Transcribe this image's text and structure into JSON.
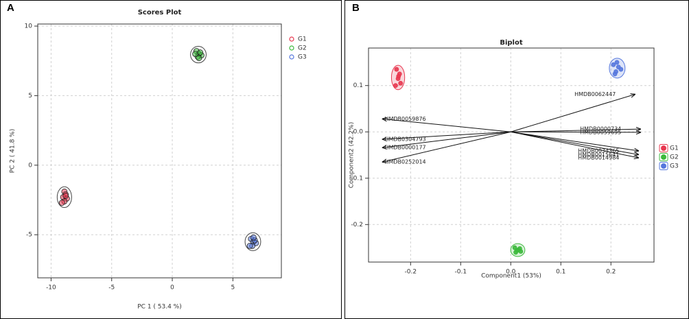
{
  "chart_data": [
    {
      "type": "scatter",
      "panel_label": "A",
      "title": "Scores Plot",
      "x_label": "PC 1 ( 53.4 %)",
      "y_label": "PC 2 ( 41.8 %)",
      "xlim": [
        -11.1,
        9
      ],
      "ylim": [
        -8.1,
        10.15
      ],
      "xticks": [
        -10,
        -5,
        0,
        5
      ],
      "yticks": [
        -5,
        0,
        5,
        10
      ],
      "grid": true,
      "legend": "right",
      "series": [
        {
          "name": "G1",
          "color": "#e8374f",
          "x": [
            -8.9,
            -8.8,
            -9.0,
            -8.7,
            -8.9,
            -8.8,
            -9.1
          ],
          "y": [
            -1.9,
            -2.1,
            -2.3,
            -2.4,
            -2.6,
            -2.2,
            -2.7
          ]
        },
        {
          "name": "G2",
          "color": "#3cb93c",
          "x": [
            2.0,
            2.2,
            2.4,
            2.1,
            2.3,
            1.9,
            2.2
          ],
          "y": [
            8.2,
            8.0,
            7.9,
            7.8,
            8.1,
            8.0,
            7.7
          ]
        },
        {
          "name": "G3",
          "color": "#5577dd",
          "x": [
            6.5,
            6.7,
            6.9,
            6.6,
            6.8,
            6.4,
            6.7
          ],
          "y": [
            -5.3,
            -5.5,
            -5.6,
            -5.8,
            -5.4,
            -5.8,
            -5.2
          ]
        }
      ]
    },
    {
      "type": "biplot",
      "panel_label": "B",
      "title": "Biplot",
      "x_label": "Component1 (53%)",
      "y_label": "Component2 (42.2%)",
      "xlim": [
        -0.284,
        0.286
      ],
      "ylim": [
        -0.281,
        0.181
      ],
      "xticks": [
        -0.2,
        -0.1,
        {
          "value": 0,
          "label": "0.0"
        },
        0.1,
        0.2
      ],
      "yticks": [
        -0.2,
        -0.1,
        {
          "value": 0,
          "label": "0.0"
        },
        0.1
      ],
      "grid": true,
      "legend": "right",
      "series": [
        {
          "name": "G1",
          "color": "#e8374f",
          "x": [
            -0.228,
            -0.222,
            -0.225,
            -0.22,
            -0.23,
            -0.224
          ],
          "y": [
            0.135,
            0.125,
            0.115,
            0.105,
            0.1,
            0.12
          ]
        },
        {
          "name": "G2",
          "color": "#3cb93c",
          "x": [
            0.008,
            0.015,
            0.02,
            0.01,
            0.018,
            0.012
          ],
          "y": [
            -0.25,
            -0.255,
            -0.258,
            -0.26,
            -0.252,
            -0.256
          ]
        },
        {
          "name": "G3",
          "color": "#5577dd",
          "x": [
            0.205,
            0.215,
            0.21,
            0.22,
            0.208,
            0.212
          ],
          "y": [
            0.145,
            0.14,
            0.13,
            0.135,
            0.125,
            0.15
          ]
        }
      ],
      "loadings": [
        {
          "name": "HMDB0062447",
          "x": 0.248,
          "y": 0.081
        },
        {
          "name": "HMDB0000734",
          "x": 0.259,
          "y": 0.006
        },
        {
          "name": "HMDB0059695",
          "x": 0.259,
          "y": -0.001
        },
        {
          "name": "HMDB0034365",
          "x": 0.255,
          "y": -0.041
        },
        {
          "name": "HMDB0015641",
          "x": 0.255,
          "y": -0.049
        },
        {
          "name": "HMDB0014984",
          "x": 0.255,
          "y": -0.056
        },
        {
          "name": "HMDB0059876",
          "x": -0.256,
          "y": 0.028
        },
        {
          "name": "HMDB0304793",
          "x": -0.256,
          "y": -0.016
        },
        {
          "name": "HMDB0000177",
          "x": -0.256,
          "y": -0.034
        },
        {
          "name": "HMDB0252014",
          "x": -0.256,
          "y": -0.065
        }
      ]
    }
  ]
}
